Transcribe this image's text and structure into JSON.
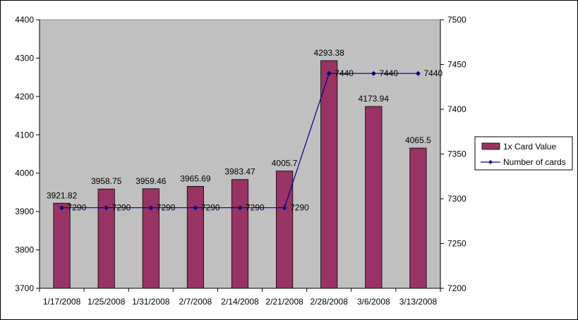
{
  "chart_data": {
    "type": "bar",
    "categories": [
      "1/17/2008",
      "1/25/2008",
      "1/31/2008",
      "2/7/2008",
      "2/14/2008",
      "2/21/2008",
      "2/28/2008",
      "3/6/2008",
      "3/13/2008"
    ],
    "series": [
      {
        "name": "1x Card Value",
        "type": "bar",
        "axis": "left",
        "color": "#993366",
        "values": [
          3921.82,
          3958.75,
          3959.46,
          3965.69,
          3983.47,
          4005.7,
          4293.38,
          4173.94,
          4065.5
        ],
        "labels": [
          "3921.82",
          "3958.75",
          "3959.46",
          "3965.69",
          "3983.47",
          "4005.7",
          "4293.38",
          "4173.94",
          "4065.5"
        ]
      },
      {
        "name": "Number of cards",
        "type": "line",
        "axis": "right",
        "color": "#000080",
        "values": [
          7290,
          7290,
          7290,
          7290,
          7290,
          7290,
          7440,
          7440,
          7440
        ],
        "labels": [
          "7290",
          "7290",
          "7290",
          "7290",
          "7290",
          "7290",
          "7440",
          "7440",
          "7440"
        ]
      }
    ],
    "y_left": {
      "lim": [
        3700,
        4400
      ],
      "ticks": [
        "3700",
        "3800",
        "3900",
        "4000",
        "4100",
        "4200",
        "4300",
        "4400"
      ]
    },
    "y_right": {
      "lim": [
        7200,
        7500
      ],
      "ticks": [
        "7200",
        "7250",
        "7300",
        "7350",
        "7400",
        "7450",
        "7500"
      ]
    },
    "plot_background": "#c0c0c0",
    "grid": false,
    "legend": "right"
  }
}
